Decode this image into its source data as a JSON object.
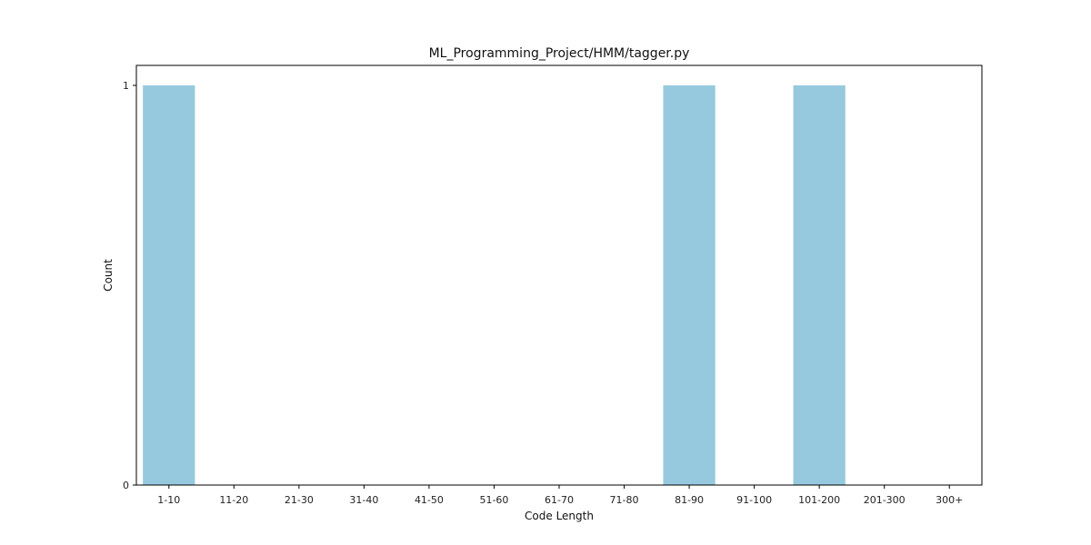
{
  "chart_data": {
    "type": "bar",
    "title": "ML_Programming_Project/HMM/tagger.py",
    "xlabel": "Code Length",
    "ylabel": "Count",
    "categories": [
      "1-10",
      "11-20",
      "21-30",
      "31-40",
      "41-50",
      "51-60",
      "61-70",
      "71-80",
      "81-90",
      "91-100",
      "101-200",
      "201-300",
      "300+"
    ],
    "values": [
      1,
      0,
      0,
      0,
      0,
      0,
      0,
      0,
      1,
      0,
      1,
      0,
      0
    ],
    "ylim": [
      0,
      1.05
    ],
    "yticks": [
      0,
      1
    ],
    "grid": false,
    "bar_color": "#96c9dd"
  }
}
